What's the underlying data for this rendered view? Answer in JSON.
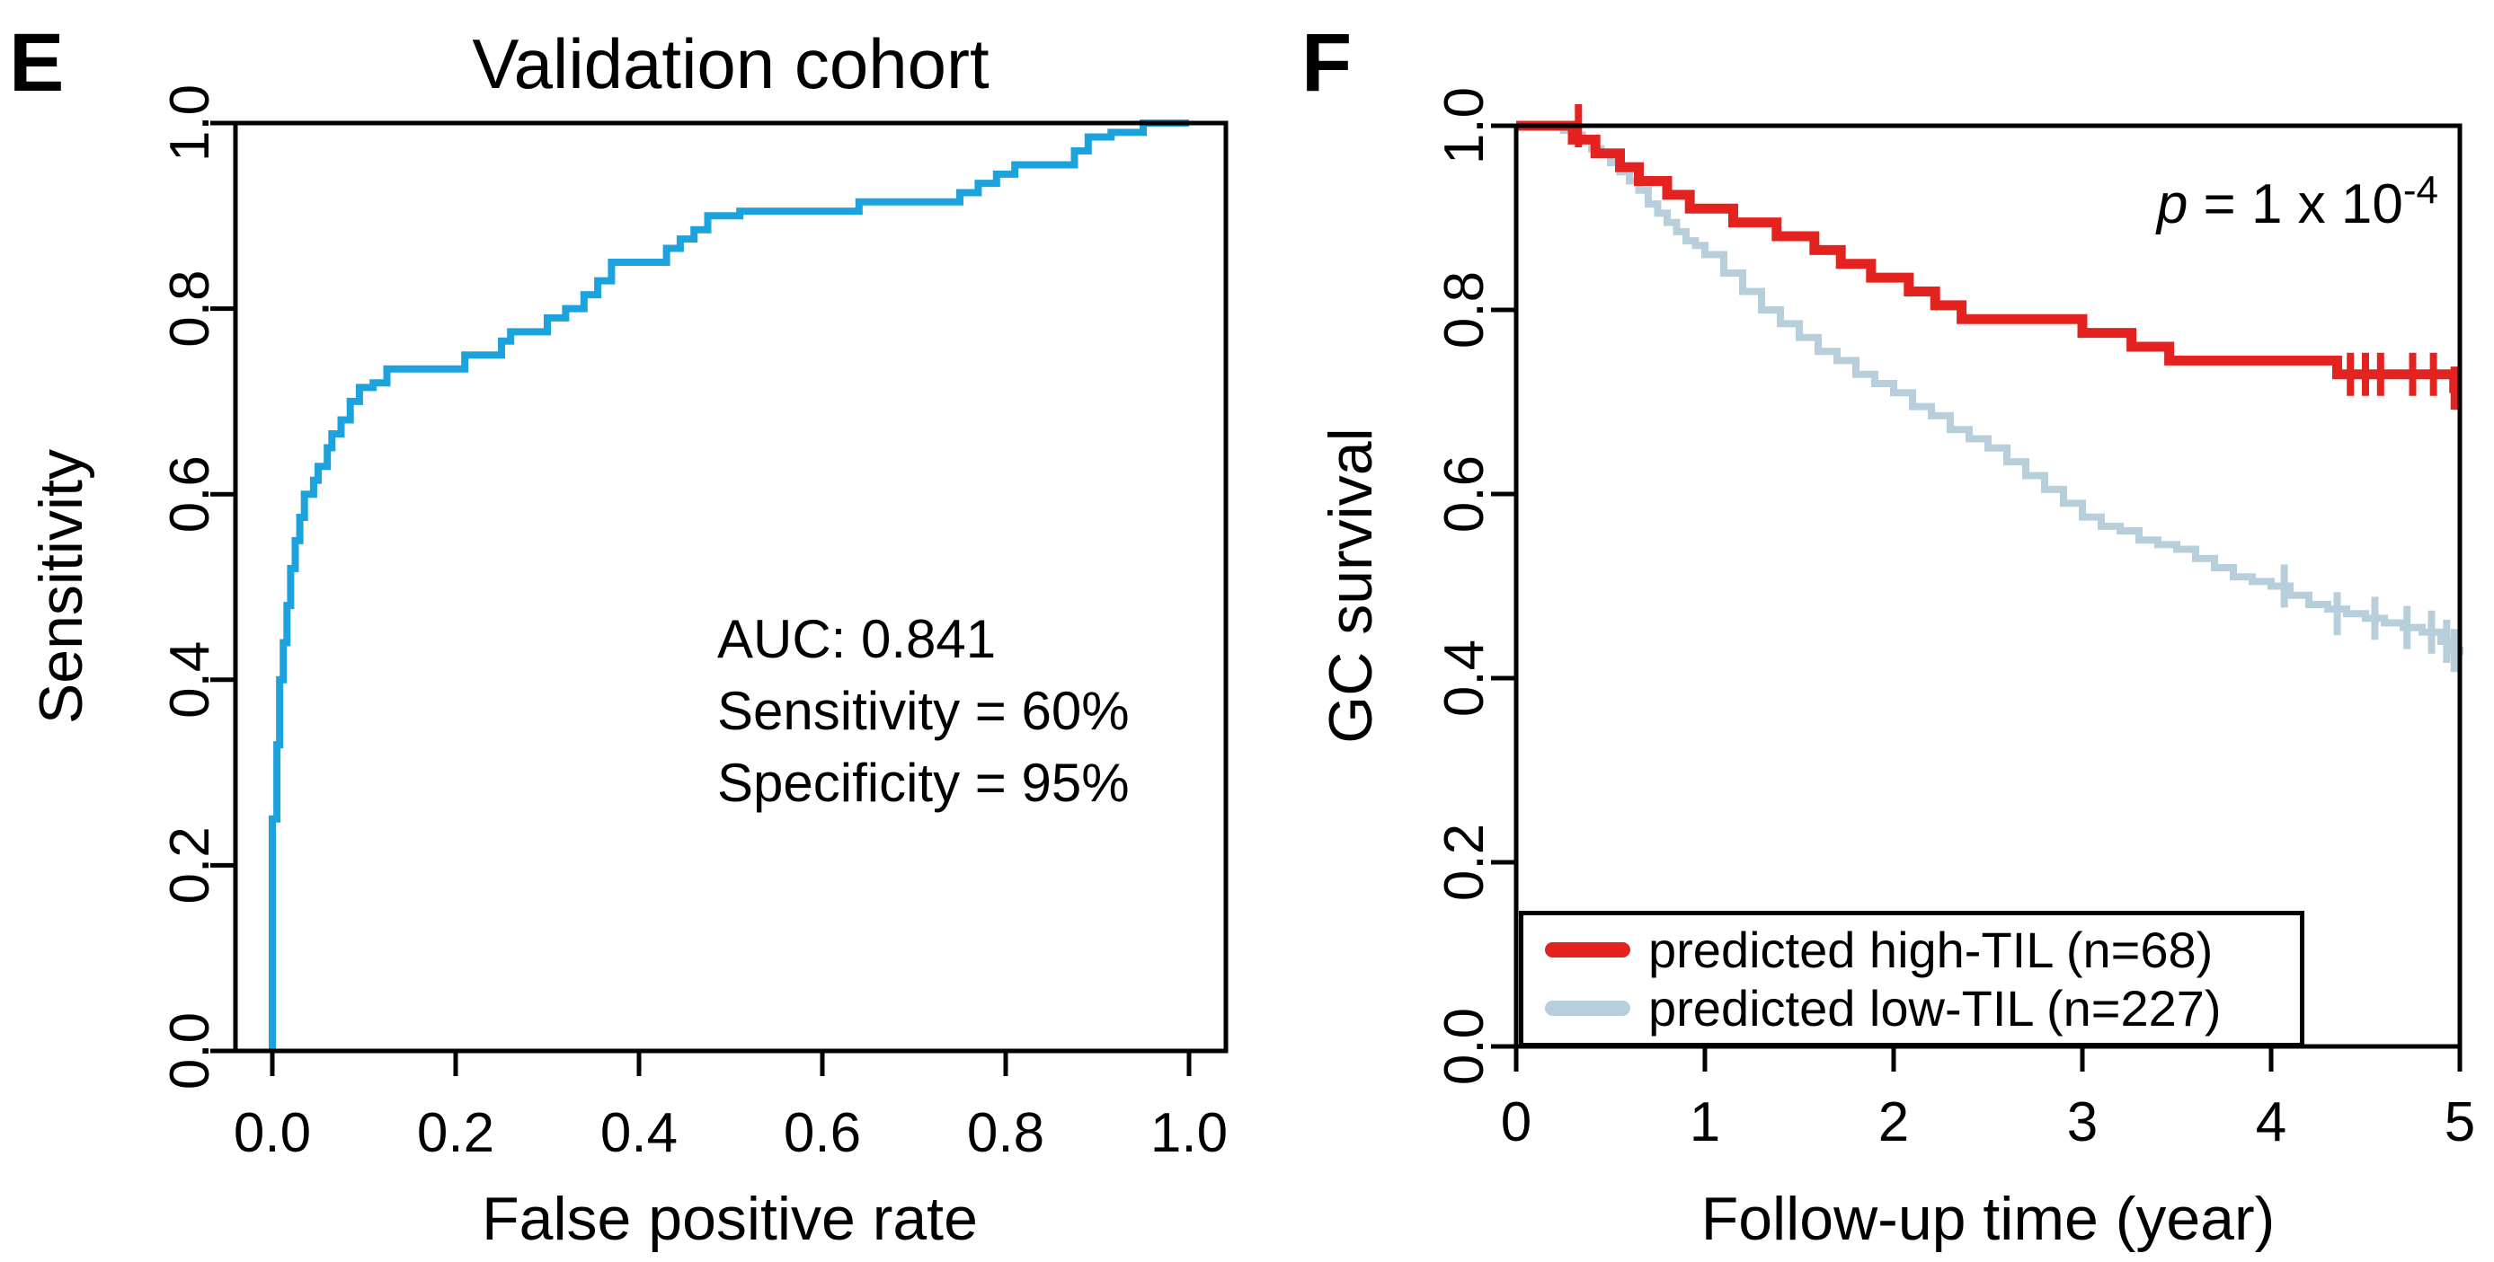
{
  "page": {
    "background": "#ffffff"
  },
  "panels": [
    {
      "letter": "E"
    },
    {
      "letter": "F"
    }
  ],
  "chart_data": [
    {
      "id": "roc",
      "type": "line",
      "title": "Validation cohort",
      "xlabel": "False positive rate",
      "ylabel": "Sensitivity",
      "xlim": [
        0,
        1
      ],
      "ylim": [
        0,
        1
      ],
      "grid": false,
      "x_ticks": [
        {
          "v": 0.0,
          "label": "0.0"
        },
        {
          "v": 0.2,
          "label": "0.2"
        },
        {
          "v": 0.4,
          "label": "0.4"
        },
        {
          "v": 0.6,
          "label": "0.6"
        },
        {
          "v": 0.8,
          "label": "0.8"
        },
        {
          "v": 1.0,
          "label": "1.0"
        }
      ],
      "y_ticks": [
        {
          "v": 0.0,
          "label": "0.0"
        },
        {
          "v": 0.2,
          "label": "0.2"
        },
        {
          "v": 0.4,
          "label": "0.4"
        },
        {
          "v": 0.6,
          "label": "0.6"
        },
        {
          "v": 0.8,
          "label": "0.8"
        },
        {
          "v": 1.0,
          "label": "1.0"
        }
      ],
      "annotations": [
        "AUC: 0.841",
        "Sensitivity = 60%",
        "Specificity = 95%"
      ],
      "series": [
        {
          "name": "ROC curve",
          "color": "#1CA2DC",
          "width": 8,
          "step": false,
          "points": [
            [
              0,
              0
            ],
            [
              0,
              0.25
            ],
            [
              0.005,
              0.25
            ],
            [
              0.005,
              0.33
            ],
            [
              0.008,
              0.33
            ],
            [
              0.008,
              0.4
            ],
            [
              0.012,
              0.4
            ],
            [
              0.012,
              0.44
            ],
            [
              0.016,
              0.44
            ],
            [
              0.016,
              0.48
            ],
            [
              0.02,
              0.48
            ],
            [
              0.02,
              0.52
            ],
            [
              0.025,
              0.52
            ],
            [
              0.025,
              0.55
            ],
            [
              0.03,
              0.55
            ],
            [
              0.03,
              0.575
            ],
            [
              0.035,
              0.575
            ],
            [
              0.035,
              0.6
            ],
            [
              0.045,
              0.6
            ],
            [
              0.045,
              0.615
            ],
            [
              0.05,
              0.615
            ],
            [
              0.05,
              0.63
            ],
            [
              0.06,
              0.63
            ],
            [
              0.06,
              0.65
            ],
            [
              0.065,
              0.65
            ],
            [
              0.065,
              0.665
            ],
            [
              0.075,
              0.665
            ],
            [
              0.075,
              0.68
            ],
            [
              0.085,
              0.68
            ],
            [
              0.085,
              0.7
            ],
            [
              0.095,
              0.7
            ],
            [
              0.095,
              0.715
            ],
            [
              0.11,
              0.715
            ],
            [
              0.11,
              0.72
            ],
            [
              0.125,
              0.72
            ],
            [
              0.125,
              0.735
            ],
            [
              0.21,
              0.735
            ],
            [
              0.21,
              0.75
            ],
            [
              0.25,
              0.75
            ],
            [
              0.25,
              0.765
            ],
            [
              0.26,
              0.765
            ],
            [
              0.26,
              0.775
            ],
            [
              0.3,
              0.775
            ],
            [
              0.3,
              0.79
            ],
            [
              0.32,
              0.79
            ],
            [
              0.32,
              0.8
            ],
            [
              0.34,
              0.8
            ],
            [
              0.34,
              0.815
            ],
            [
              0.355,
              0.815
            ],
            [
              0.355,
              0.83
            ],
            [
              0.37,
              0.83
            ],
            [
              0.37,
              0.85
            ],
            [
              0.43,
              0.85
            ],
            [
              0.43,
              0.865
            ],
            [
              0.445,
              0.865
            ],
            [
              0.445,
              0.875
            ],
            [
              0.46,
              0.875
            ],
            [
              0.46,
              0.885
            ],
            [
              0.475,
              0.885
            ],
            [
              0.475,
              0.9
            ],
            [
              0.51,
              0.9
            ],
            [
              0.51,
              0.905
            ],
            [
              0.64,
              0.905
            ],
            [
              0.64,
              0.915
            ],
            [
              0.75,
              0.915
            ],
            [
              0.75,
              0.925
            ],
            [
              0.77,
              0.925
            ],
            [
              0.77,
              0.935
            ],
            [
              0.79,
              0.935
            ],
            [
              0.79,
              0.945
            ],
            [
              0.81,
              0.945
            ],
            [
              0.81,
              0.955
            ],
            [
              0.875,
              0.955
            ],
            [
              0.875,
              0.97
            ],
            [
              0.89,
              0.97
            ],
            [
              0.89,
              0.985
            ],
            [
              0.915,
              0.985
            ],
            [
              0.915,
              0.99
            ],
            [
              0.95,
              0.99
            ],
            [
              0.95,
              1.0
            ],
            [
              1.0,
              1.0
            ]
          ]
        }
      ]
    },
    {
      "id": "km",
      "type": "line",
      "title": "",
      "xlabel": "Follow-up time (year)",
      "ylabel": "GC survival",
      "xlim": [
        0,
        5
      ],
      "ylim": [
        0,
        1
      ],
      "grid": false,
      "x_ticks": [
        {
          "v": 0,
          "label": "0"
        },
        {
          "v": 1,
          "label": "1"
        },
        {
          "v": 2,
          "label": "2"
        },
        {
          "v": 3,
          "label": "3"
        },
        {
          "v": 4,
          "label": "4"
        },
        {
          "v": 5,
          "label": "5"
        }
      ],
      "y_ticks": [
        {
          "v": 0.0,
          "label": "0.0"
        },
        {
          "v": 0.2,
          "label": "0.2"
        },
        {
          "v": 0.4,
          "label": "0.4"
        },
        {
          "v": 0.6,
          "label": "0.6"
        },
        {
          "v": 0.8,
          "label": "0.8"
        },
        {
          "v": 1.0,
          "label": "1.0"
        }
      ],
      "p_value": {
        "italic": "p",
        "rest": " = 1 x 10",
        "exponent": "-4"
      },
      "legend": {
        "items": [
          {
            "label": "predicted high-TIL (n=68)",
            "color": "#E42320"
          },
          {
            "label": "predicted low-TIL (n=227)",
            "color": "#B7CFDA"
          }
        ]
      },
      "series": [
        {
          "name": "predicted low-TIL (n=227)",
          "color": "#B7CFDA",
          "width": 8,
          "step": true,
          "points": [
            [
              0,
              1
            ],
            [
              0.25,
              0.995
            ],
            [
              0.3,
              0.99
            ],
            [
              0.35,
              0.985
            ],
            [
              0.4,
              0.975
            ],
            [
              0.45,
              0.97
            ],
            [
              0.5,
              0.96
            ],
            [
              0.55,
              0.95
            ],
            [
              0.6,
              0.94
            ],
            [
              0.65,
              0.93
            ],
            [
              0.7,
              0.915
            ],
            [
              0.75,
              0.905
            ],
            [
              0.8,
              0.895
            ],
            [
              0.85,
              0.885
            ],
            [
              0.9,
              0.875
            ],
            [
              0.95,
              0.87
            ],
            [
              1.0,
              0.86
            ],
            [
              1.1,
              0.84
            ],
            [
              1.2,
              0.82
            ],
            [
              1.3,
              0.8
            ],
            [
              1.4,
              0.785
            ],
            [
              1.5,
              0.77
            ],
            [
              1.6,
              0.755
            ],
            [
              1.7,
              0.745
            ],
            [
              1.8,
              0.73
            ],
            [
              1.9,
              0.72
            ],
            [
              2.0,
              0.71
            ],
            [
              2.1,
              0.695
            ],
            [
              2.2,
              0.685
            ],
            [
              2.3,
              0.67
            ],
            [
              2.4,
              0.66
            ],
            [
              2.5,
              0.65
            ],
            [
              2.6,
              0.635
            ],
            [
              2.7,
              0.62
            ],
            [
              2.8,
              0.605
            ],
            [
              2.9,
              0.59
            ],
            [
              3.0,
              0.575
            ],
            [
              3.1,
              0.565
            ],
            [
              3.2,
              0.56
            ],
            [
              3.3,
              0.55
            ],
            [
              3.4,
              0.545
            ],
            [
              3.5,
              0.54
            ],
            [
              3.6,
              0.53
            ],
            [
              3.7,
              0.52
            ],
            [
              3.8,
              0.51
            ],
            [
              3.9,
              0.505
            ],
            [
              4.0,
              0.5
            ],
            [
              4.1,
              0.49
            ],
            [
              4.2,
              0.48
            ],
            [
              4.3,
              0.475
            ],
            [
              4.4,
              0.47
            ],
            [
              4.5,
              0.465
            ],
            [
              4.6,
              0.46
            ],
            [
              4.7,
              0.455
            ],
            [
              4.8,
              0.45
            ],
            [
              4.9,
              0.44
            ],
            [
              4.95,
              0.43
            ],
            [
              5.0,
              0.425
            ]
          ],
          "censor_marks": [
            [
              4.07,
              0.5
            ],
            [
              4.35,
              0.47
            ],
            [
              4.55,
              0.465
            ],
            [
              4.72,
              0.455
            ],
            [
              4.85,
              0.45
            ],
            [
              4.93,
              0.44
            ],
            [
              4.97,
              0.43
            ]
          ]
        },
        {
          "name": "predicted high-TIL (n=68)",
          "color": "#E42320",
          "width": 11,
          "step": true,
          "points": [
            [
              0,
              1
            ],
            [
              0.3,
              0.985
            ],
            [
              0.42,
              0.97
            ],
            [
              0.55,
              0.955
            ],
            [
              0.65,
              0.94
            ],
            [
              0.8,
              0.925
            ],
            [
              0.92,
              0.91
            ],
            [
              1.15,
              0.895
            ],
            [
              1.38,
              0.88
            ],
            [
              1.58,
              0.865
            ],
            [
              1.72,
              0.85
            ],
            [
              1.88,
              0.835
            ],
            [
              2.08,
              0.82
            ],
            [
              2.22,
              0.805
            ],
            [
              2.36,
              0.79
            ],
            [
              3.0,
              0.775
            ],
            [
              3.26,
              0.76
            ],
            [
              3.46,
              0.745
            ],
            [
              4.35,
              0.73
            ],
            [
              4.97,
              0.715
            ],
            [
              5.0,
              0.715
            ]
          ],
          "censor_marks": [
            [
              0.33,
              1.0
            ],
            [
              4.42,
              0.73
            ],
            [
              4.5,
              0.73
            ],
            [
              4.58,
              0.73
            ],
            [
              4.75,
              0.73
            ],
            [
              4.86,
              0.73
            ],
            [
              4.97,
              0.715
            ],
            [
              4.99,
              0.715
            ]
          ]
        }
      ]
    }
  ]
}
